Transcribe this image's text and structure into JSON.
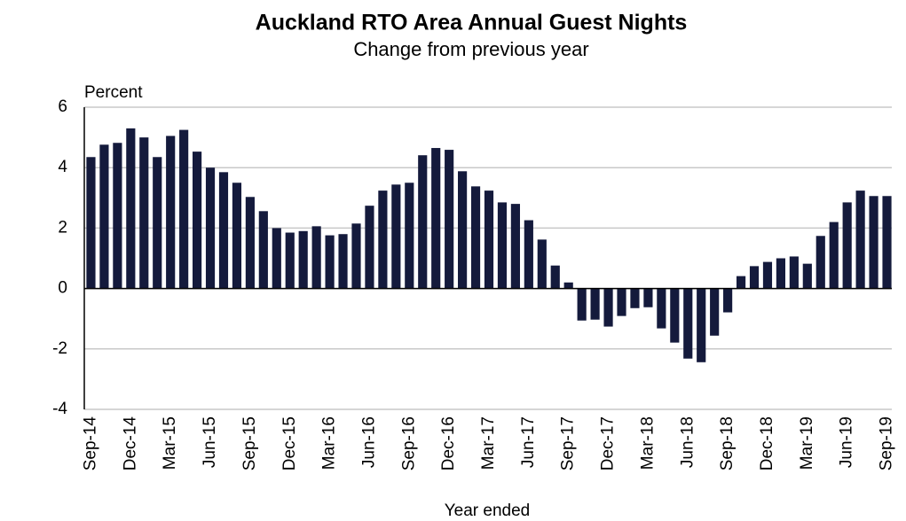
{
  "chart_data": {
    "type": "bar",
    "title": "Auckland RTO Area Annual Guest Nights",
    "subtitle": "Change from previous year",
    "y_axis_label": "Percent",
    "x_axis_label": "Year ended",
    "categories": [
      "Sep-14",
      null,
      null,
      "Dec-14",
      null,
      null,
      "Mar-15",
      null,
      null,
      "Jun-15",
      null,
      null,
      "Sep-15",
      null,
      null,
      "Dec-15",
      null,
      null,
      "Mar-16",
      null,
      null,
      "Jun-16",
      null,
      null,
      "Sep-16",
      null,
      null,
      "Dec-16",
      null,
      null,
      "Mar-17",
      null,
      null,
      "Jun-17",
      null,
      null,
      "Sep-17",
      null,
      null,
      "Dec-17",
      null,
      null,
      "Mar-18",
      null,
      null,
      "Jun-18",
      null,
      null,
      "Sep-18",
      null,
      null,
      "Dec-18",
      null,
      null,
      "Mar-19",
      null,
      null,
      "Jun-19",
      null,
      null,
      "Sep-19"
    ],
    "values": [
      4.35,
      4.76,
      4.82,
      5.3,
      5.0,
      4.35,
      5.05,
      5.25,
      4.53,
      4.0,
      3.85,
      3.5,
      3.03,
      2.56,
      2.0,
      1.85,
      1.9,
      2.06,
      1.76,
      1.8,
      2.15,
      2.74,
      3.24,
      3.44,
      3.5,
      4.41,
      4.65,
      4.59,
      3.88,
      3.38,
      3.24,
      2.85,
      2.8,
      2.26,
      1.62,
      0.76,
      0.2,
      -1.06,
      -1.03,
      -1.26,
      -0.91,
      -0.65,
      -0.62,
      -1.32,
      -1.79,
      -2.32,
      -2.44,
      -1.56,
      -0.79,
      0.41,
      0.74,
      0.88,
      1.0,
      1.06,
      0.82,
      1.74,
      2.2,
      2.85,
      3.24,
      3.06,
      3.06
    ],
    "color": "#141a3c",
    "ylim": [
      -4,
      6
    ],
    "yticks": [
      -4,
      -2,
      0,
      2,
      4,
      6
    ],
    "grid": true
  }
}
